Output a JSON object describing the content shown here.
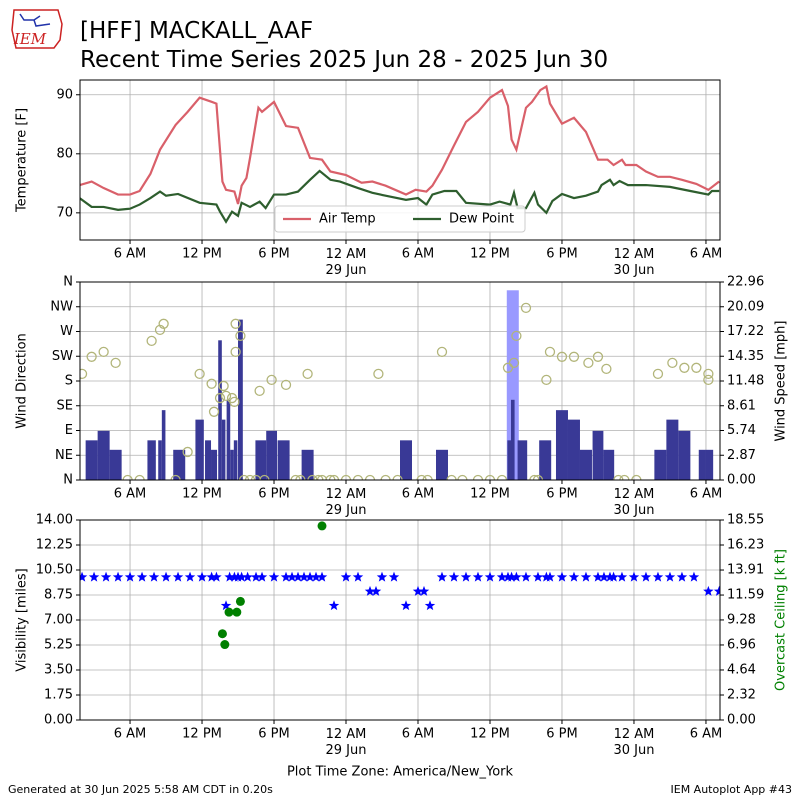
{
  "logo_text": "IEM",
  "title": "[HFF] MACKALL_AAF",
  "subtitle": "Recent Time Series 2025 Jun 28 - 2025 Jun 30",
  "footer_left": "Generated at 30 Jun 2025 5:58 AM CDT in 0.20s",
  "footer_right": "IEM Autoplot App #43",
  "chart_data": [
    {
      "type": "line",
      "ylabel": "Temperature [F]",
      "grid": true,
      "legend": "lower center",
      "xlim": [
        1.83,
        55.17
      ],
      "xticks": [
        {
          "value": 6,
          "label": "6 AM"
        },
        {
          "value": 12,
          "label": "12 PM"
        },
        {
          "value": 18,
          "label": "6 PM"
        },
        {
          "value": 24,
          "label": "12 AM\n29 Jun"
        },
        {
          "value": 30,
          "label": "6 AM"
        },
        {
          "value": 36,
          "label": "12 PM"
        },
        {
          "value": 42,
          "label": "6 PM"
        },
        {
          "value": 48,
          "label": "12 AM\n30 Jun"
        },
        {
          "value": 54,
          "label": "6 AM"
        }
      ],
      "ylim": [
        65.4,
        92.5
      ],
      "yticks": [
        70,
        80,
        90
      ],
      "series": [
        {
          "name": "Air Temp",
          "color": "#d9606a",
          "x": [
            1.8,
            2.8,
            3.8,
            5.0,
            6.0,
            6.8,
            7.7,
            8.5,
            9.8,
            10.8,
            11.8,
            12.8,
            13.2,
            13.7,
            14.0,
            14.7,
            15.0,
            15.3,
            15.7,
            16.0,
            16.7,
            17.0,
            18.0,
            19.0,
            20.0,
            21.0,
            22.0,
            22.7,
            24.0,
            25.3,
            26.2,
            27.3,
            29.0,
            29.8,
            30.7,
            31.2,
            32.0,
            33.0,
            34.0,
            35.0,
            36.0,
            37.0,
            37.5,
            37.8,
            38.2,
            39.0,
            39.5,
            40.2,
            40.7,
            41.0,
            42.0,
            43.0,
            44.0,
            45.0,
            45.8,
            46.3,
            47.0,
            47.3,
            48.2,
            49.0,
            50.0,
            51.0,
            52.0,
            53.2,
            54.2,
            55.1
          ],
          "values": [
            74.7,
            75.3,
            74.2,
            73.1,
            73.1,
            73.7,
            76.6,
            80.7,
            84.9,
            87.1,
            89.5,
            88.8,
            88.5,
            75.3,
            73.9,
            73.6,
            71.5,
            74.6,
            75.9,
            79.3,
            87.8,
            87.1,
            88.8,
            84.7,
            84.4,
            79.3,
            79.0,
            77.0,
            76.4,
            75.1,
            75.3,
            74.6,
            73.1,
            73.9,
            73.6,
            74.6,
            77.3,
            81.4,
            85.4,
            87.1,
            89.5,
            90.8,
            88.1,
            82.4,
            80.7,
            87.8,
            88.8,
            90.8,
            91.4,
            88.5,
            85.1,
            86.1,
            83.7,
            79.0,
            79.0,
            78.1,
            79.0,
            78.1,
            78.1,
            77.0,
            76.1,
            76.1,
            75.6,
            74.9,
            73.9,
            75.3
          ]
        },
        {
          "name": "Dew Point",
          "color": "#2e5e2e",
          "x": [
            1.8,
            2.8,
            3.8,
            5.0,
            6.0,
            6.8,
            7.7,
            8.5,
            9.0,
            10.0,
            11.8,
            13.2,
            13.5,
            14.0,
            14.5,
            15.0,
            15.3,
            16.0,
            16.8,
            17.3,
            18.0,
            19.0,
            20.0,
            21.0,
            21.8,
            22.7,
            23.5,
            25.0,
            26.2,
            27.3,
            29.0,
            30.0,
            30.7,
            31.2,
            32.2,
            33.2,
            34.0,
            36.0,
            36.8,
            37.7,
            38.0,
            38.3,
            39.0,
            39.7,
            40.0,
            40.7,
            41.2,
            42.0,
            43.0,
            44.0,
            45.0,
            45.3,
            46.0,
            46.3,
            46.8,
            47.5,
            49.0,
            51.0,
            52.7,
            54.2,
            54.5,
            55.1
          ],
          "values": [
            72.5,
            71.0,
            71.0,
            70.5,
            70.7,
            71.4,
            72.5,
            73.6,
            72.9,
            73.2,
            71.7,
            71.4,
            70.2,
            68.5,
            70.2,
            69.5,
            71.7,
            71.0,
            71.9,
            70.8,
            73.1,
            73.1,
            73.6,
            75.6,
            77.1,
            75.6,
            75.3,
            74.2,
            73.4,
            72.9,
            72.2,
            72.5,
            71.4,
            73.1,
            73.7,
            73.7,
            71.7,
            71.4,
            71.9,
            71.4,
            73.4,
            70.8,
            70.8,
            73.4,
            71.4,
            70.0,
            72.0,
            73.2,
            72.5,
            72.9,
            73.6,
            74.7,
            75.6,
            74.7,
            75.4,
            74.7,
            74.7,
            74.4,
            73.7,
            73.1,
            73.7,
            73.7
          ]
        }
      ]
    },
    {
      "type": "combo",
      "ylabel": "Wind Direction",
      "y2label": "Wind Speed [mph]",
      "grid": true,
      "xlim": [
        1.83,
        55.17
      ],
      "xticks": [
        {
          "value": 6,
          "label": "6 AM"
        },
        {
          "value": 12,
          "label": "12 PM"
        },
        {
          "value": 18,
          "label": "6 PM"
        },
        {
          "value": 24,
          "label": "12 AM\n29 Jun"
        },
        {
          "value": 30,
          "label": "6 AM"
        },
        {
          "value": 36,
          "label": "12 PM"
        },
        {
          "value": 42,
          "label": "6 PM"
        },
        {
          "value": 48,
          "label": "12 AM\n30 Jun"
        },
        {
          "value": 54,
          "label": "6 AM"
        }
      ],
      "ylim": [
        0,
        360
      ],
      "yticks": [
        {
          "value": 0,
          "label": "N"
        },
        {
          "value": 45,
          "label": "NE"
        },
        {
          "value": 90,
          "label": "E"
        },
        {
          "value": 135,
          "label": "SE"
        },
        {
          "value": 180,
          "label": "S"
        },
        {
          "value": 225,
          "label": "SW"
        },
        {
          "value": 270,
          "label": "W"
        },
        {
          "value": 315,
          "label": "NW"
        },
        {
          "value": 360,
          "label": "N"
        }
      ],
      "y2lim": [
        0,
        22.96
      ],
      "y2ticks": [
        {
          "value": 0,
          "label": "0.00"
        },
        2.87,
        5.74,
        8.61,
        11.48,
        14.35,
        17.22,
        20.09,
        22.96
      ],
      "series": [
        {
          "type": "bar",
          "axis": "y2",
          "color": "#9999ff",
          "x": [
            37.9
          ],
          "values": [
            22.0
          ]
        },
        {
          "type": "bar",
          "axis": "y2",
          "color": "#393996",
          "x": [
            2.8,
            3.8,
            4.8,
            7.8,
            8.5,
            8.8,
            10.1,
            11.8,
            12.5,
            13.0,
            13.5,
            13.8,
            14.2,
            14.5,
            14.8,
            15.2,
            16.9,
            17.8,
            18.8,
            20.8,
            29.0,
            32.0,
            37.6,
            37.9,
            38.7,
            40.6,
            42.0,
            43.0,
            44.0,
            45.0,
            45.9,
            50.2,
            51.2,
            52.2,
            53.7,
            54.3
          ],
          "values": [
            4.6,
            5.7,
            3.5,
            4.6,
            4.6,
            8.1,
            3.5,
            7.0,
            4.6,
            3.5,
            16.2,
            7.0,
            9.3,
            3.5,
            4.6,
            18.6,
            4.6,
            5.7,
            4.6,
            3.5,
            4.6,
            3.5,
            4.6,
            9.3,
            4.6,
            4.6,
            8.1,
            7.0,
            3.5,
            5.7,
            3.5,
            3.5,
            7.0,
            5.7,
            3.5,
            3.5
          ]
        },
        {
          "type": "scatter",
          "marker": "circle",
          "color": "#b2b57a",
          "x": [
            2.0,
            2.8,
            3.8,
            4.8,
            5.8,
            6.8,
            7.8,
            8.5,
            8.8,
            9.8,
            10.8,
            11.8,
            12.8,
            13.0,
            13.5,
            13.8,
            14.0,
            14.5,
            14.7,
            14.8,
            14.8,
            15.2,
            15.5,
            16.0,
            16.5,
            16.8,
            17.2,
            17.8,
            19.0,
            19.8,
            20.2,
            20.8,
            21.2,
            21.7,
            22.0,
            22.7,
            23.0,
            24.0,
            25.0,
            26.0,
            26.7,
            27.3,
            28.3,
            30.3,
            30.8,
            32.0,
            32.8,
            33.7,
            35.0,
            36.0,
            37.0,
            37.5,
            38.0,
            38.2,
            39.0,
            39.7,
            40.0,
            40.7,
            41.0,
            42.0,
            43.0,
            44.2,
            45.0,
            45.7,
            46.7,
            47.2,
            48.2,
            50.0,
            51.2,
            52.2,
            53.2,
            54.2,
            54.2
          ],
          "values": [
            193,
            224,
            233,
            213,
            0,
            0,
            253,
            273,
            284,
            0,
            51,
            193,
            175,
            124,
            149,
            171,
            153,
            149,
            142,
            284,
            233,
            262,
            0,
            0,
            0,
            162,
            0,
            182,
            173,
            0,
            0,
            193,
            0,
            0,
            0,
            0,
            0,
            0,
            0,
            0,
            193,
            0,
            0,
            0,
            0,
            233,
            0,
            0,
            0,
            0,
            0,
            204,
            213,
            262,
            313,
            0,
            0,
            182,
            233,
            224,
            224,
            213,
            224,
            202,
            0,
            0,
            0,
            193,
            213,
            204,
            204,
            193,
            182
          ]
        }
      ]
    },
    {
      "type": "combo",
      "ylabel": "Visibility [miles]",
      "y2label": "Overcast Ceiling [k ft]",
      "y2label_color": "#008000",
      "xlabel": "Plot Time Zone: America/New_York",
      "grid": true,
      "xlim": [
        1.83,
        55.17
      ],
      "xticks": [
        {
          "value": 6,
          "label": "6 AM"
        },
        {
          "value": 12,
          "label": "12 PM"
        },
        {
          "value": 18,
          "label": "6 PM"
        },
        {
          "value": 24,
          "label": "12 AM\n29 Jun"
        },
        {
          "value": 30,
          "label": "6 AM"
        },
        {
          "value": 36,
          "label": "12 PM"
        },
        {
          "value": 42,
          "label": "6 PM"
        },
        {
          "value": 48,
          "label": "12 AM\n30 Jun"
        },
        {
          "value": 54,
          "label": "6 AM"
        }
      ],
      "ylim": [
        0,
        14
      ],
      "yticks": [
        {
          "value": 0,
          "label": "0.00"
        },
        1.75,
        {
          "value": 3.5,
          "label": "3.50"
        },
        5.25,
        {
          "value": 7,
          "label": "7.00"
        },
        8.75,
        {
          "value": 10.5,
          "label": "10.50"
        },
        12.25,
        {
          "value": 14,
          "label": "14.00"
        }
      ],
      "y2lim": [
        0,
        18.55
      ],
      "y2ticks": [
        {
          "value": 0,
          "label": "0.00"
        },
        2.32,
        4.64,
        6.96,
        9.28,
        11.59,
        13.91,
        16.23,
        18.55
      ],
      "series": [
        {
          "type": "scatter",
          "marker": "star",
          "color": "#0000ff",
          "x": [
            2.0,
            3.0,
            4.0,
            5.0,
            6.0,
            7.0,
            8.0,
            9.0,
            10.0,
            11.0,
            12.0,
            12.8,
            13.2,
            14.0,
            14.3,
            14.7,
            15.0,
            15.3,
            15.8,
            16.5,
            17.0,
            18.0,
            19.0,
            19.5,
            20.0,
            20.5,
            21.0,
            21.5,
            22.0,
            23.0,
            24.0,
            25.0,
            26.0,
            26.5,
            27.0,
            28.0,
            29.0,
            30.0,
            30.5,
            31.0,
            32.0,
            33.0,
            34.0,
            35.0,
            36.0,
            37.0,
            37.5,
            37.8,
            38.2,
            39.0,
            40.0,
            40.7,
            41.0,
            42.0,
            43.0,
            44.0,
            45.0,
            45.5,
            46.0,
            46.3,
            47.0,
            48.0,
            49.0,
            50.0,
            51.0,
            52.0,
            53.0,
            54.2,
            55.1
          ],
          "values": [
            10,
            10,
            10,
            10,
            10,
            10,
            10,
            10,
            10,
            10,
            10,
            10,
            10,
            8,
            10,
            10,
            10,
            10,
            10,
            10,
            10,
            10,
            10,
            10,
            10,
            10,
            10,
            10,
            10,
            8,
            10,
            10,
            9,
            9,
            10,
            10,
            8,
            9,
            9,
            8,
            10,
            10,
            10,
            10,
            10,
            10,
            10,
            10,
            10,
            10,
            10,
            10,
            10,
            10,
            10,
            10,
            10,
            10,
            10,
            10,
            10,
            10,
            10,
            10,
            10,
            10,
            10,
            9,
            9
          ]
        },
        {
          "type": "scatter",
          "marker": "circle",
          "axis": "y2",
          "color": "#008000",
          "x": [
            13.7,
            13.9,
            14.25,
            14.9,
            15.2,
            22.0
          ],
          "values": [
            8.0,
            7.0,
            10.0,
            10.0,
            11.0,
            18.0
          ]
        }
      ]
    }
  ]
}
